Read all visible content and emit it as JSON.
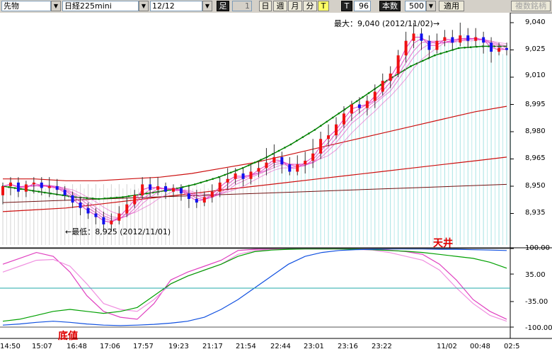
{
  "toolbar": {
    "type_value": "先物",
    "symbol_value": "日経225mini",
    "contract_value": "12/12",
    "foot_label": "足",
    "period_value": "1",
    "day_label": "日",
    "week_label": "週",
    "month_label": "月",
    "minute_label": "分",
    "tick_label": "T",
    "t_label": "T",
    "count_value": "96",
    "count_unit_label": "本数",
    "bars_value": "500",
    "apply_label": "適用",
    "multi_symbol_label": "複数銘柄"
  },
  "annotations": {
    "max_label": "最大：9,040 (2012/11/02)→",
    "min_label": "←最低：8,925 (2012/11/01)",
    "top_label": "天井",
    "bottom_label": "底値"
  },
  "price_axis": [
    "9,040",
    "9,025",
    "9,010",
    "8,995",
    "8,980",
    "8,965",
    "8,950",
    "8,935"
  ],
  "osc_axis": [
    "100.00",
    "35.00",
    "-35.00",
    "-100.00"
  ],
  "time_axis": [
    "14:50",
    "15:07",
    "16:48",
    "17:06",
    "17:57",
    "19:23",
    "21:17",
    "21:54",
    "22:44",
    "23:01",
    "23:16",
    "23:22",
    "11/02",
    "00:48",
    "02:5"
  ],
  "colors": {
    "up": "#ee1111",
    "down": "#1111ee",
    "guppy": "#e040c0",
    "ema_green": "#008000",
    "red_ma": "#cc1010",
    "dark_ma": "#701010",
    "band": "#808080",
    "cyan": "#00b0b0"
  },
  "chart_data": [
    {
      "type": "candlestick",
      "title": "",
      "ylim": [
        8925,
        9045
      ],
      "candles": [
        [
          8945,
          8950,
          8940,
          8952
        ],
        [
          8950,
          8952,
          8945,
          8955
        ],
        [
          8952,
          8947,
          8944,
          8955
        ],
        [
          8947,
          8951,
          8944,
          8953
        ],
        [
          8951,
          8952,
          8946,
          8955
        ],
        [
          8952,
          8949,
          8945,
          8955
        ],
        [
          8949,
          8950,
          8944,
          8955
        ],
        [
          8950,
          8948,
          8945,
          8954
        ],
        [
          8948,
          8945,
          8942,
          8950
        ],
        [
          8945,
          8941,
          8938,
          8947
        ],
        [
          8941,
          8938,
          8934,
          8944
        ],
        [
          8938,
          8935,
          8932,
          8941
        ],
        [
          8935,
          8933,
          8929,
          8938
        ],
        [
          8933,
          8929,
          8926,
          8936
        ],
        [
          8929,
          8931,
          8925,
          8935
        ],
        [
          8931,
          8935,
          8929,
          8939
        ],
        [
          8935,
          8940,
          8933,
          8944
        ],
        [
          8940,
          8945,
          8938,
          8948
        ],
        [
          8945,
          8951,
          8943,
          8955
        ],
        [
          8951,
          8948,
          8944,
          8955
        ],
        [
          8948,
          8950,
          8945,
          8955
        ],
        [
          8950,
          8947,
          8943,
          8952
        ],
        [
          8947,
          8949,
          8944,
          8951
        ],
        [
          8949,
          8946,
          8942,
          8951
        ],
        [
          8946,
          8943,
          8938,
          8950
        ],
        [
          8943,
          8941,
          8938,
          8948
        ],
        [
          8941,
          8944,
          8939,
          8947
        ],
        [
          8944,
          8947,
          8941,
          8951
        ],
        [
          8947,
          8952,
          8944,
          8955
        ],
        [
          8952,
          8954,
          8948,
          8960
        ],
        [
          8954,
          8957,
          8951,
          8960
        ],
        [
          8957,
          8954,
          8950,
          8960
        ],
        [
          8954,
          8958,
          8951,
          8962
        ],
        [
          8958,
          8960,
          8955,
          8964
        ],
        [
          8960,
          8963,
          8956,
          8971
        ],
        [
          8963,
          8966,
          8960,
          8973
        ],
        [
          8966,
          8962,
          8957,
          8969
        ],
        [
          8962,
          8958,
          8956,
          8966
        ],
        [
          8958,
          8962,
          8956,
          8967
        ],
        [
          8962,
          8964,
          8957,
          8969
        ],
        [
          8964,
          8968,
          8960,
          8976
        ],
        [
          8968,
          8976,
          8965,
          8980
        ],
        [
          8976,
          8978,
          8972,
          8984
        ],
        [
          8978,
          8984,
          8976,
          8988
        ],
        [
          8984,
          8990,
          8982,
          8994
        ],
        [
          8990,
          8995,
          8986,
          8997
        ],
        [
          8995,
          8993,
          8990,
          8999
        ],
        [
          8993,
          8997,
          8989,
          9000
        ],
        [
          8997,
          9002,
          8993,
          9006
        ],
        [
          9002,
          9008,
          9000,
          9012
        ],
        [
          9008,
          9012,
          9004,
          9016
        ],
        [
          9012,
          9022,
          9010,
          9025
        ],
        [
          9022,
          9030,
          9018,
          9035
        ],
        [
          9030,
          9034,
          9026,
          9040
        ],
        [
          9034,
          9030,
          9025,
          9037
        ],
        [
          9030,
          9025,
          9020,
          9033
        ],
        [
          9025,
          9030,
          9023,
          9034
        ],
        [
          9030,
          9032,
          9027,
          9036
        ],
        [
          9032,
          9029,
          9025,
          9036
        ],
        [
          9029,
          9033,
          9027,
          9040
        ],
        [
          9033,
          9030,
          9026,
          9037
        ],
        [
          9030,
          9032,
          9027,
          9037
        ],
        [
          9032,
          9029,
          9023,
          9035
        ],
        [
          9029,
          9024,
          9018,
          9032
        ],
        [
          9024,
          9026,
          9022,
          9029
        ],
        [
          9026,
          9025,
          9022,
          9029
        ]
      ],
      "ema_green": [
        8950,
        8948,
        8946,
        8944,
        8943,
        8944,
        8946,
        8948,
        8951,
        8955,
        8960,
        8966,
        8973,
        8981,
        8990,
        8999,
        9008,
        9016,
        9022,
        9026,
        9027,
        9027
      ],
      "ma_red_upper": [
        8954,
        8954,
        8953,
        8953,
        8954,
        8955,
        8957,
        8960,
        8963,
        8967,
        8971,
        8975,
        8979,
        8983,
        8987,
        8991,
        8994
      ],
      "ma_red_lower": [
        8936,
        8937,
        8938,
        8940,
        8942,
        8944,
        8946,
        8948,
        8950,
        8952,
        8954,
        8956,
        8958,
        8960,
        8962,
        8964,
        8966
      ],
      "ma_dark": [
        8941,
        8942,
        8943,
        8944,
        8945,
        8946,
        8947,
        8948,
        8949,
        8950,
        8951
      ]
    },
    {
      "type": "line",
      "title": "",
      "ylim": [
        -100,
        100
      ],
      "series": [
        {
          "values": [
            60,
            75,
            90,
            80,
            40,
            -20,
            -60,
            -75,
            -80,
            -40,
            20,
            40,
            55,
            70,
            95,
            98,
            99,
            99,
            100,
            100,
            100,
            99,
            98,
            96,
            92,
            85,
            60,
            20,
            -30,
            -60,
            -80
          ]
        },
        {
          "values": [
            40,
            55,
            70,
            72,
            55,
            10,
            -40,
            -55,
            -60,
            -30,
            10,
            30,
            45,
            60,
            85,
            95,
            97,
            98,
            99,
            99,
            99,
            98,
            96,
            90,
            80,
            70,
            45,
            0,
            -40,
            -70,
            -85
          ]
        },
        {
          "values": [
            -85,
            -80,
            -70,
            -60,
            -55,
            -60,
            -65,
            -60,
            -50,
            -20,
            10,
            30,
            45,
            60,
            80,
            92,
            96,
            98,
            99,
            99,
            99,
            98,
            97,
            95,
            93,
            90,
            85,
            80,
            75,
            65,
            50
          ]
        },
        {
          "values": [
            -95,
            -92,
            -88,
            -85,
            -88,
            -92,
            -95,
            -96,
            -95,
            -93,
            -90,
            -85,
            -75,
            -55,
            -30,
            0,
            30,
            60,
            80,
            90,
            95,
            97,
            98,
            99,
            99,
            99,
            98,
            98,
            97,
            96,
            95
          ]
        }
      ]
    }
  ]
}
